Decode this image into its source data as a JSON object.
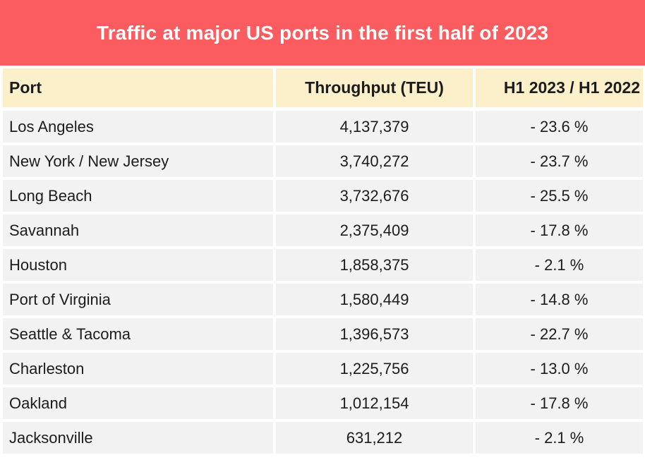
{
  "title": "Traffic at major US ports in the first half of 2023",
  "header": {
    "port": "Port",
    "throughput": "Throughput (TEU)",
    "change": "H1 2023 / H1 2022"
  },
  "rows": [
    {
      "port": "Los Angeles",
      "throughput": "4,137,379",
      "change": "- 23.6 %"
    },
    {
      "port": "New York / New Jersey",
      "throughput": "3,740,272",
      "change": "- 23.7 %"
    },
    {
      "port": "Long Beach",
      "throughput": "3,732,676",
      "change": "- 25.5 %"
    },
    {
      "port": "Savannah",
      "throughput": "2,375,409",
      "change": "- 17.8 %"
    },
    {
      "port": "Houston",
      "throughput": "1,858,375",
      "change": "- 2.1 %"
    },
    {
      "port": "Port of Virginia",
      "throughput": "1,580,449",
      "change": "- 14.8 %"
    },
    {
      "port": "Seattle & Tacoma",
      "throughput": "1,396,573",
      "change": "- 22.7 %"
    },
    {
      "port": "Charleston",
      "throughput": "1,225,756",
      "change": "- 13.0 %"
    },
    {
      "port": "Oakland",
      "throughput": "1,012,154",
      "change": "- 17.8 %"
    },
    {
      "port": "Jacksonville",
      "throughput": "631,212",
      "change": "- 2.1 %"
    }
  ],
  "colors": {
    "banner_bg": "#fa5c5f",
    "banner_text": "#ffffff",
    "header_bg": "#fcf0cb",
    "row_bg": "#f2f2f2",
    "text": "#1c1c1c",
    "gutter": "#ffffff"
  },
  "chart_data": {
    "type": "table",
    "title": "Traffic at major US ports in the first half of 2023",
    "columns": [
      "Port",
      "Throughput (TEU)",
      "H1 2023 / H1 2022 (%)"
    ],
    "rows": [
      [
        "Los Angeles",
        4137379,
        -23.6
      ],
      [
        "New York / New Jersey",
        3740272,
        -23.7
      ],
      [
        "Long Beach",
        3732676,
        -25.5
      ],
      [
        "Savannah",
        2375409,
        -17.8
      ],
      [
        "Houston",
        1858375,
        -2.1
      ],
      [
        "Port of Virginia",
        1580449,
        -14.8
      ],
      [
        "Seattle & Tacoma",
        1396573,
        -22.7
      ],
      [
        "Charleston",
        1225756,
        -13.0
      ],
      [
        "Oakland",
        1012154,
        -17.8
      ],
      [
        "Jacksonville",
        631212,
        -2.1
      ]
    ]
  }
}
